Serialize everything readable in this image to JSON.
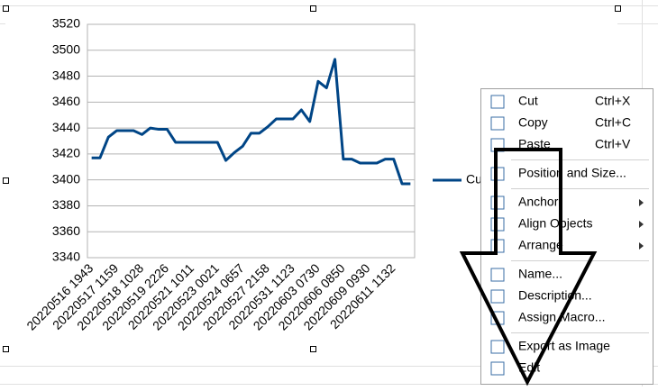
{
  "chart_data": {
    "type": "line",
    "categories": [
      "20220516 1943",
      null,
      null,
      "20220517 1159",
      null,
      null,
      "20220518 1028",
      null,
      null,
      "20220519 2226",
      null,
      null,
      "20220521 1011",
      null,
      null,
      "20220523 0021",
      null,
      null,
      "20220524 0657",
      null,
      null,
      "20220527 2158",
      null,
      null,
      "20220531 1123",
      null,
      null,
      "20220603 0730",
      null,
      null,
      "20220606 0850",
      null,
      null,
      "20220609 0930",
      null,
      null,
      "20220611 1132",
      null,
      null
    ],
    "series": [
      {
        "name": "Cu",
        "color": "#004586",
        "values": [
          3417,
          3417,
          3433,
          3438,
          3438,
          3438,
          3435,
          3440,
          3439,
          3439,
          3429,
          3429,
          3429,
          3429,
          3429,
          3429,
          3415,
          3421,
          3426,
          3436,
          3436,
          3441,
          3447,
          3447,
          3447,
          3454,
          3445,
          3476,
          3471,
          3493,
          3416,
          3416,
          3413,
          3413,
          3413,
          3416,
          3416,
          3397,
          3397
        ]
      }
    ],
    "ylim": [
      3340,
      3520
    ],
    "yticks": [
      3340,
      3360,
      3380,
      3400,
      3420,
      3440,
      3460,
      3480,
      3500,
      3520
    ],
    "grid": true,
    "legend": "right"
  },
  "menu": {
    "items": [
      {
        "label": "Cut",
        "shortcut": "Ctrl+X"
      },
      {
        "label": "Copy",
        "shortcut": "Ctrl+C"
      },
      {
        "label": "Paste",
        "shortcut": "Ctrl+V"
      },
      {
        "label": "Position and Size..."
      },
      {
        "label": "Anchor"
      },
      {
        "label": "Align Objects"
      },
      {
        "label": "Arrange"
      },
      {
        "label": "Name..."
      },
      {
        "label": "Description..."
      },
      {
        "label": "Assign Macro..."
      },
      {
        "label": "Export as Image"
      },
      {
        "label": "Edit"
      }
    ]
  }
}
